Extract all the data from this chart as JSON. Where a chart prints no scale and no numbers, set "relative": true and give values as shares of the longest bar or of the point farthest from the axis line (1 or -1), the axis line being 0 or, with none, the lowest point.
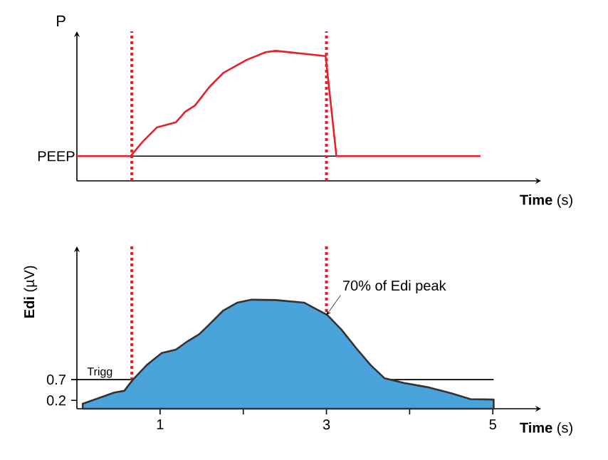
{
  "chart_data": [
    {
      "type": "line",
      "ylabel": "P",
      "xlabel": "**Time** (s)",
      "relative": true,
      "xlim": [
        0,
        5.58
      ],
      "x": [
        0,
        0.645,
        0.79,
        0.96,
        1.07,
        1.19,
        1.3,
        1.42,
        1.59,
        1.76,
        2.04,
        2.27,
        2.39,
        2.99,
        3.12,
        4.85
      ],
      "series": [
        {
          "color": "#e8202a",
          "values": [
            0.19,
            0.19,
            0.3,
            0.41,
            0.43,
            0.45,
            0.53,
            0.58,
            0.72,
            0.83,
            0.93,
            0.99,
            1.0,
            0.96,
            0.19,
            0.19
          ]
        }
      ],
      "ref_lines": [
        {
          "axis": "y",
          "value": 0.19,
          "label": "PEEP",
          "color": "#000000"
        },
        {
          "axis": "x",
          "value": 0.66,
          "color": "#e8202a",
          "line_style": "dotted"
        },
        {
          "axis": "x",
          "value": 3.0,
          "color": "#e8202a",
          "line_style": "dotted"
        }
      ]
    },
    {
      "type": "area",
      "ylabel": "**Edi** (µV)",
      "xlabel": "**Time** (s)",
      "xlim": [
        0,
        5.58
      ],
      "ylim": [
        0,
        3.9
      ],
      "xticks": [
        1,
        {
          "value": 2,
          "label": null
        },
        3,
        {
          "value": 4,
          "label": null
        },
        5
      ],
      "yticks": [
        0.2,
        0.7
      ],
      "x": [
        0.07,
        0.27,
        0.45,
        0.57,
        0.67,
        0.84,
        1.02,
        1.19,
        1.33,
        1.47,
        1.59,
        1.76,
        1.93,
        2.1,
        2.39,
        2.73,
        3.01,
        3.18,
        3.36,
        3.53,
        3.7,
        3.93,
        4.21,
        4.5,
        4.73,
        5.01
      ],
      "series": [
        {
          "color": "#4ba3dc",
          "values": [
            0.12,
            0.26,
            0.39,
            0.43,
            0.69,
            1.05,
            1.34,
            1.42,
            1.62,
            1.79,
            2.02,
            2.36,
            2.55,
            2.62,
            2.61,
            2.55,
            2.25,
            1.9,
            1.45,
            1.05,
            0.73,
            0.62,
            0.52,
            0.37,
            0.23,
            0.22
          ]
        }
      ],
      "ref_lines": [
        {
          "axis": "y",
          "value": 0.7,
          "label": "Trigg",
          "color": "#000000"
        },
        {
          "axis": "x",
          "value": 0.66,
          "color": "#e8202a",
          "line_style": "dotted"
        },
        {
          "axis": "x",
          "value": 3.0,
          "color": "#e8202a",
          "line_style": "dotted"
        }
      ],
      "annotations": [
        {
          "text": "70% of Edi peak",
          "x": 3.0,
          "y": 2.25
        }
      ]
    }
  ]
}
